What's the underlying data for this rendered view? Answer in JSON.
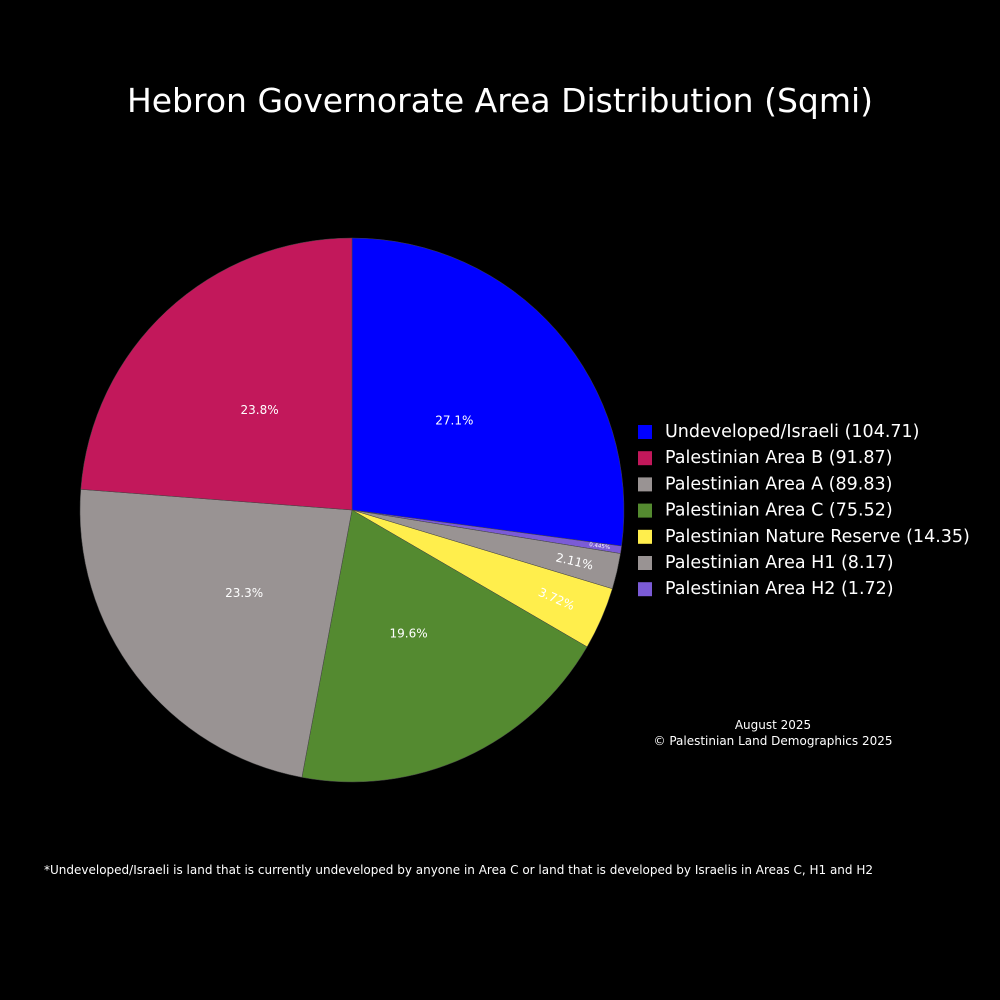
{
  "chart_data": {
    "type": "pie",
    "title": "Hebron Governorate Area Distribution (Sqmi)",
    "direction": "clockwise",
    "start": "12 o'clock",
    "slices": [
      {
        "name": "Undeveloped/Israeli",
        "value": 104.71,
        "label": "27.1%",
        "legend": "Undeveloped/Israeli (104.71)",
        "color": "#0000ff"
      },
      {
        "name": "Palestinian Area H2",
        "value": 1.72,
        "label": "0.445%",
        "legend": "Palestinian Area H2 (1.72)",
        "color": "#7b5bd6"
      },
      {
        "name": "Palestinian Area H1",
        "value": 8.17,
        "label": "2.11%",
        "legend": "Palestinian Area H1 (8.17)",
        "color": "#999393"
      },
      {
        "name": "Palestinian Nature Reserve",
        "value": 14.35,
        "label": "3.72%",
        "legend": "Palestinian Nature Reserve (14.35)",
        "color": "#ffee4c"
      },
      {
        "name": "Palestinian Area C",
        "value": 75.52,
        "label": "19.6%",
        "legend": "Palestinian Area C (75.52)",
        "color": "#548a30"
      },
      {
        "name": "Palestinian Area A",
        "value": 89.83,
        "label": "23.3%",
        "legend": "Palestinian Area A (89.83)",
        "color": "#999393"
      },
      {
        "name": "Palestinian Area B",
        "value": 91.87,
        "label": "23.8%",
        "legend": "Palestinian Area B (91.87)",
        "color": "#c2185b"
      }
    ],
    "legend_order": [
      "Undeveloped/Israeli",
      "Palestinian Area B",
      "Palestinian Area A",
      "Palestinian Area C",
      "Palestinian Nature Reserve",
      "Palestinian Area H1",
      "Palestinian Area H2"
    ],
    "legend_placement": "right"
  },
  "annotation": {
    "date": "August 2025",
    "copyright": "© Palestinian Land Demographics 2025"
  },
  "footnote": "*Undeveloped/Israeli is land that is currently undeveloped by anyone in Area C or land that is developed by Israelis in Areas C, H1 and H2",
  "colors": {
    "background": "#000000",
    "text": "#ffffff"
  }
}
